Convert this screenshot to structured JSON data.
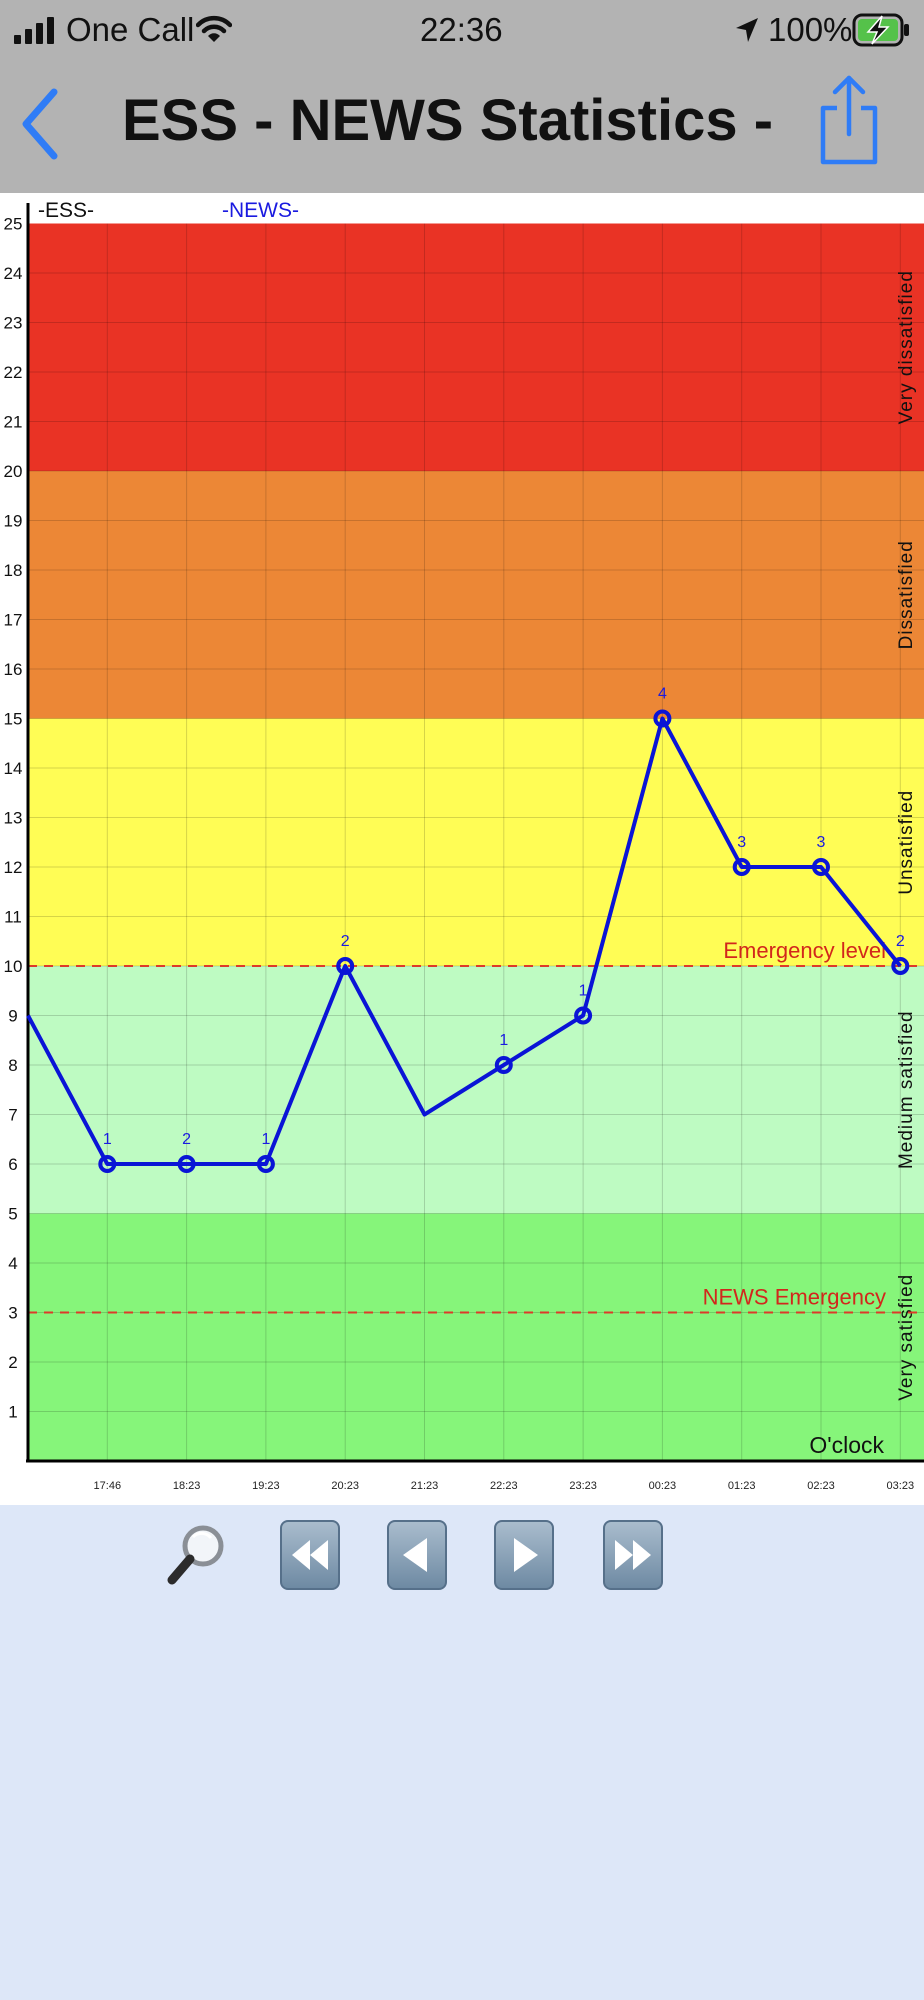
{
  "status_bar": {
    "carrier": "One Call",
    "time": "22:36",
    "battery": "100%",
    "icons": [
      "signal-icon",
      "wifi-icon",
      "location-arrow-icon",
      "battery-charging-icon"
    ]
  },
  "nav_bar": {
    "title": "ESS - NEWS Statistics - S...",
    "back_icon": "chevron-left-icon",
    "share_icon": "share-icon",
    "accent": "#2f7cf6"
  },
  "chart_data": {
    "type": "line",
    "header_labels": {
      "ess": "-ESS-",
      "news": "-NEWS-"
    },
    "xlabel": "O'clock",
    "x_ticks": [
      "17:46",
      "18:23",
      "19:23",
      "20:23",
      "21:23",
      "22:23",
      "23:23",
      "00:23",
      "01:23",
      "02:23",
      "03:23"
    ],
    "ylim": [
      0,
      25
    ],
    "y_ticks": [
      1,
      2,
      3,
      4,
      5,
      6,
      7,
      8,
      9,
      10,
      11,
      12,
      13,
      14,
      15,
      16,
      17,
      18,
      19,
      20,
      21,
      22,
      23,
      24,
      25
    ],
    "grid": true,
    "bands": [
      {
        "from": 0,
        "to": 5,
        "label": "Very satisfied",
        "color": "#86f57a"
      },
      {
        "from": 5,
        "to": 10,
        "label": "Medium satisfied",
        "color": "#befbc2"
      },
      {
        "from": 10,
        "to": 15,
        "label": "Unsatisfied",
        "color": "#fffd55"
      },
      {
        "from": 15,
        "to": 20,
        "label": "Dissatisfied",
        "color": "#ec8736"
      },
      {
        "from": 20,
        "to": 25,
        "label": "Very dissatisfied",
        "color": "#e93325"
      }
    ],
    "thresholds": [
      {
        "value": 10,
        "label": "Emergency level"
      },
      {
        "value": 3,
        "label": "NEWS Emergency"
      }
    ],
    "series": [
      {
        "color": "#0a14d6",
        "points": [
          {
            "x": 0,
            "y": 9,
            "label": "",
            "marker": false
          },
          {
            "x": 1,
            "y": 6,
            "label": "1",
            "marker": true
          },
          {
            "x": 2,
            "y": 6,
            "label": "2",
            "marker": true
          },
          {
            "x": 3,
            "y": 6,
            "label": "1",
            "marker": true
          },
          {
            "x": 4,
            "y": 10,
            "label": "2",
            "marker": true
          },
          {
            "x": 5,
            "y": 7,
            "label": "",
            "marker": false
          },
          {
            "x": 6,
            "y": 8,
            "label": "1",
            "marker": true
          },
          {
            "x": 7,
            "y": 9,
            "label": "1",
            "marker": true
          },
          {
            "x": 8,
            "y": 15,
            "label": "4",
            "marker": true
          },
          {
            "x": 9,
            "y": 12,
            "label": "3",
            "marker": true
          },
          {
            "x": 10,
            "y": 12,
            "label": "3",
            "marker": true
          },
          {
            "x": 11,
            "y": 10,
            "label": "2",
            "marker": true
          }
        ]
      }
    ]
  },
  "controls": {
    "zoom_icon": "magnifier-icon",
    "buttons": [
      "rewind-icon",
      "step-back-icon",
      "step-forward-icon",
      "fast-forward-icon"
    ]
  }
}
